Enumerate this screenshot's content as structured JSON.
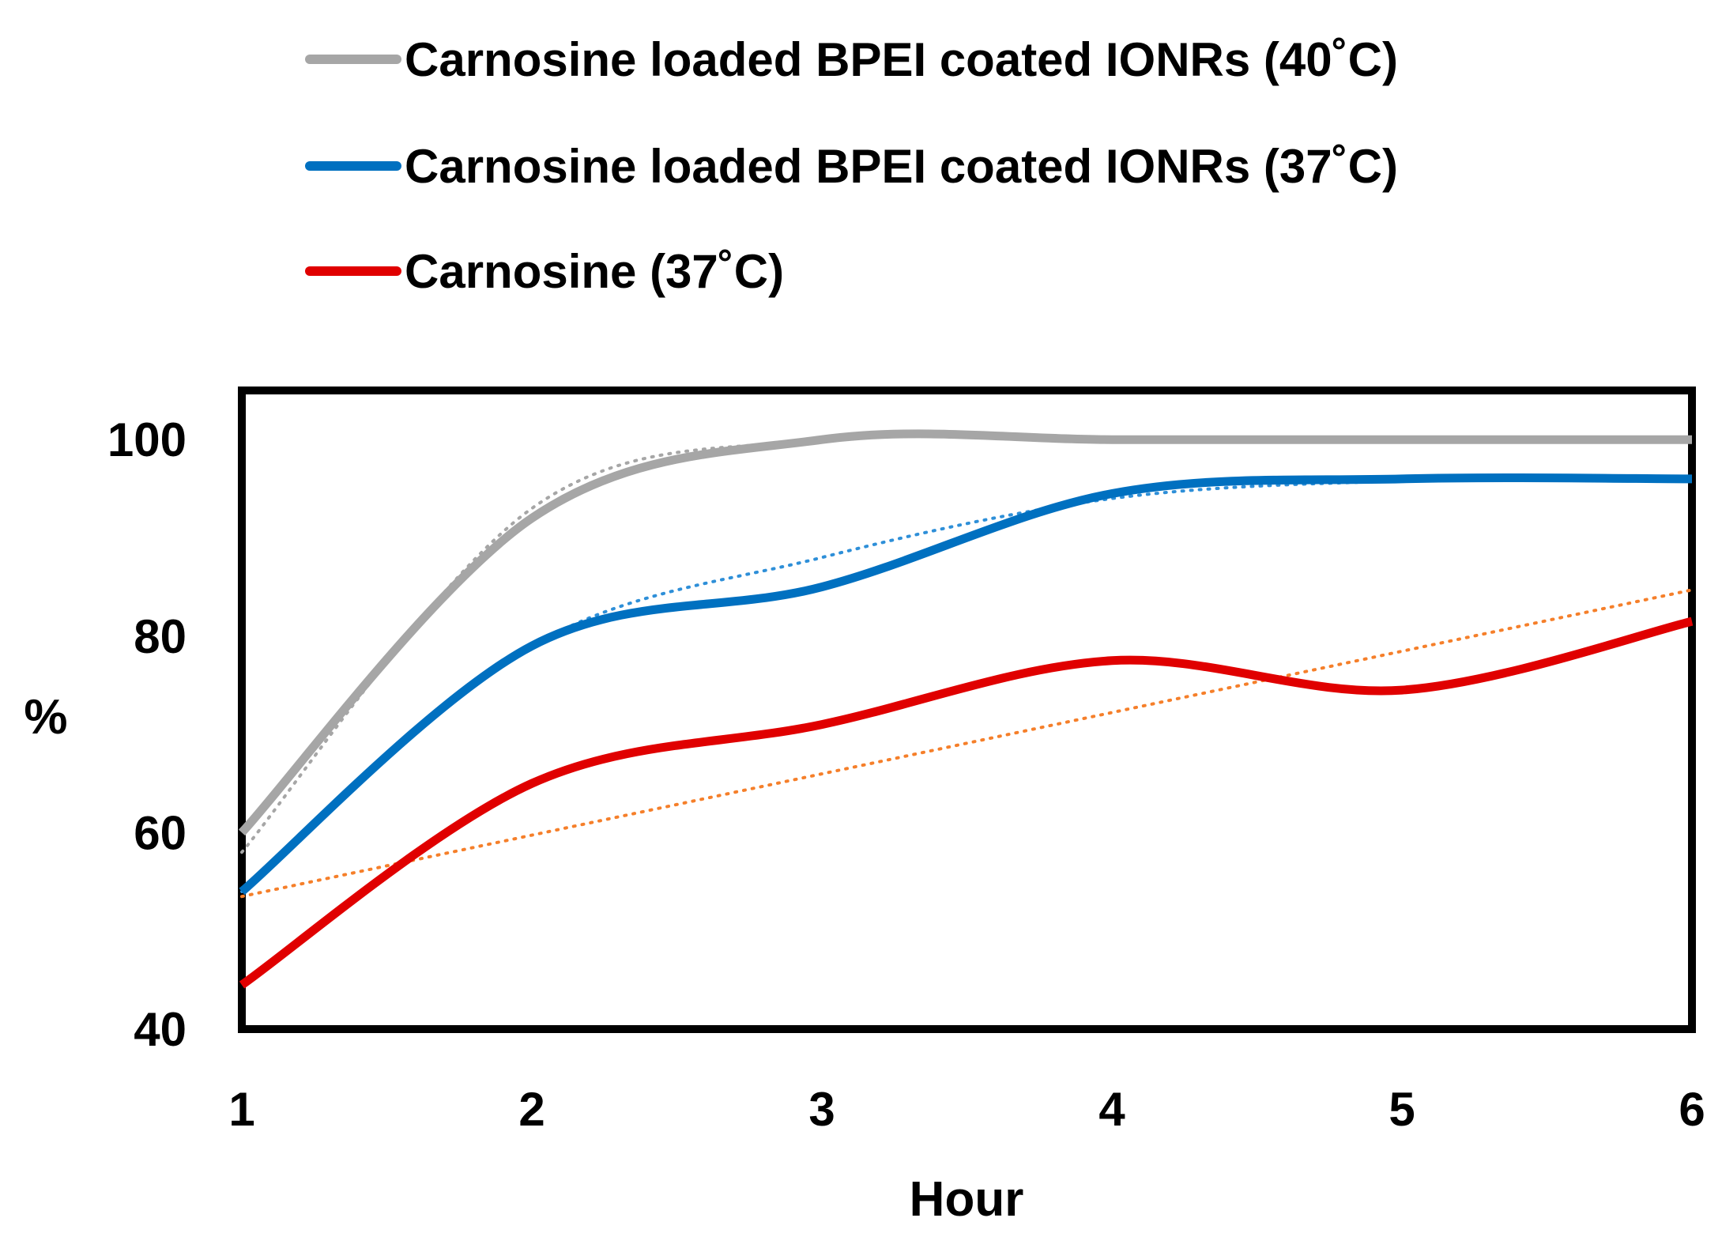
{
  "chart_data": {
    "type": "line",
    "title": "",
    "xlabel": "Hour",
    "ylabel": "%",
    "x": [
      1,
      2,
      3,
      4,
      5,
      6
    ],
    "xticks": [
      "1",
      "2",
      "3",
      "4",
      "5",
      "6"
    ],
    "yticks": [
      "40",
      "60",
      "80",
      "100"
    ],
    "ylim": [
      40,
      105
    ],
    "xlim": [
      1,
      6
    ],
    "grid": false,
    "legend_position": "top",
    "series": [
      {
        "name": "Carnosine loaded BPEI coated IONRs (40˚C)",
        "color": "#a6a6a6",
        "values": [
          60,
          92,
          100,
          100,
          100,
          100
        ],
        "trendline": {
          "style": "dotted",
          "color": "#a6a6a6",
          "values": [
            58,
            93,
            100,
            100,
            100,
            100
          ]
        }
      },
      {
        "name": "Carnosine loaded BPEI coated IONRs (37˚C)",
        "color": "#0070c0",
        "values": [
          54,
          79,
          85,
          94.5,
          96,
          96
        ],
        "trendline": {
          "style": "dotted",
          "color": "#2e8fd8",
          "values": [
            54,
            79,
            88,
            94,
            95.8,
            96
          ]
        }
      },
      {
        "name": "Carnosine (37˚C)",
        "color": "#e00000",
        "values": [
          44.5,
          65,
          71,
          77.5,
          74.5,
          81.5
        ],
        "trendline": {
          "style": "dotted",
          "type": "linear",
          "color": "#f57f2a",
          "values": [
            53.5,
            59.8,
            66,
            72.2,
            78.5,
            84.7
          ]
        }
      }
    ]
  }
}
